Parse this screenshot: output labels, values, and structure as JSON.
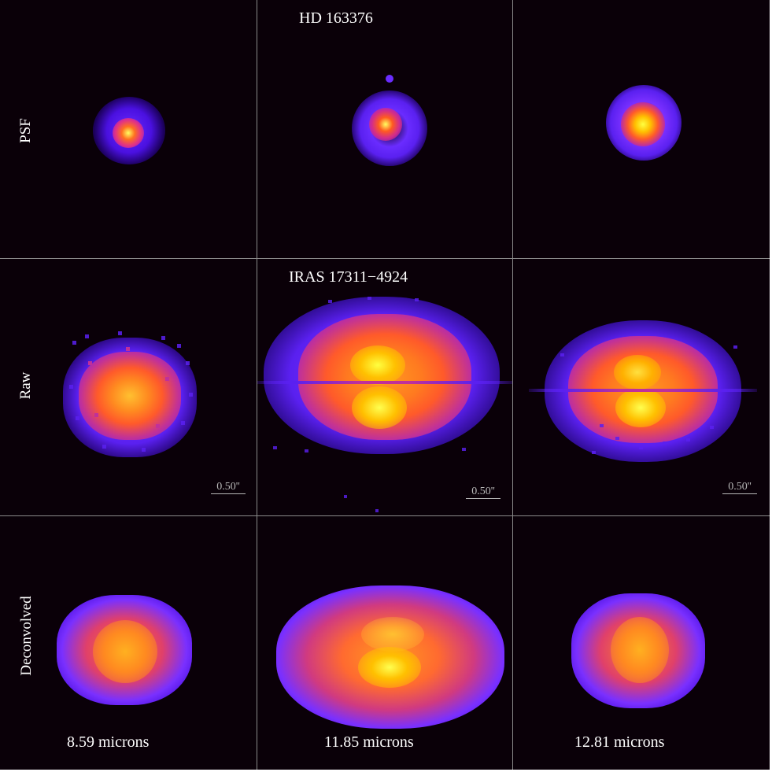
{
  "figure": {
    "psf_target": "HD 163376",
    "science_target": "IRAS 17311−4924",
    "row_labels": [
      "PSF",
      "Raw",
      "Deconvolved"
    ],
    "wavelength_labels": [
      "8.59 microns",
      "11.85 microns",
      "12.81 microns"
    ],
    "scale_bar_label": "0.50''",
    "colormap": {
      "background": "#0a0008",
      "low": "#2a00a0",
      "mid_low": "#6a2cff",
      "mid": "#c0309a",
      "mid_high": "#ff5a2a",
      "high": "#ffb000",
      "peak": "#ffff40"
    }
  }
}
